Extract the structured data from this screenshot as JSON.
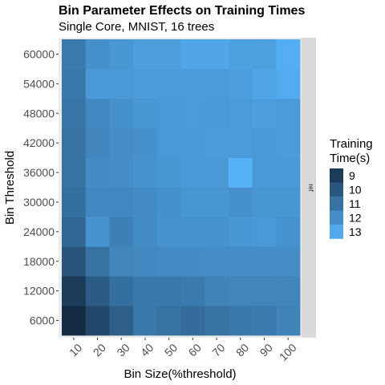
{
  "chart_data": {
    "type": "heatmap",
    "title": "Bin Parameter Effects on Training Times",
    "subtitle": "Single Core, MNIST, 16 trees",
    "xlabel": "Bin Size(%threshold)",
    "ylabel": "Bin Threshold",
    "x_categories": [
      "10",
      "20",
      "30",
      "40",
      "50",
      "60",
      "70",
      "80",
      "90",
      "100"
    ],
    "y_categories": [
      "6000",
      "12000",
      "18000",
      "24000",
      "30000",
      "36000",
      "42000",
      "48000",
      "54000",
      "60000"
    ],
    "facet_label": "ref",
    "legend": {
      "title_lines": [
        "Training",
        "Time(s)"
      ],
      "breaks": [
        9,
        10,
        11,
        12,
        13
      ],
      "range": [
        8.4,
        13.3
      ],
      "placement": "right"
    },
    "color_low": "#132B43",
    "color_high": "#56B1F7",
    "panel_background": "#ebebeb",
    "strip_background": "#d9d9d9",
    "values": [
      [
        8.4,
        9.5,
        10.3,
        11.2,
        11.0,
        10.8,
        11.0,
        11.2,
        11.3,
        11.6
      ],
      [
        9.0,
        10.2,
        10.9,
        11.2,
        11.2,
        11.3,
        11.6,
        11.7,
        11.7,
        11.7
      ],
      [
        9.9,
        11.0,
        11.7,
        11.8,
        11.9,
        11.9,
        12.0,
        12.0,
        12.0,
        12.0
      ],
      [
        10.6,
        12.2,
        11.5,
        11.9,
        12.2,
        12.2,
        12.2,
        12.3,
        12.4,
        12.2
      ],
      [
        10.9,
        11.8,
        11.8,
        11.9,
        12.1,
        12.3,
        12.3,
        12.1,
        12.3,
        12.3
      ],
      [
        11.0,
        11.9,
        12.0,
        12.2,
        12.3,
        12.4,
        12.4,
        13.3,
        12.4,
        12.4
      ],
      [
        11.0,
        11.7,
        12.0,
        12.1,
        12.4,
        12.4,
        12.5,
        12.5,
        12.4,
        12.5
      ],
      [
        11.1,
        11.8,
        12.1,
        12.3,
        12.4,
        12.5,
        12.4,
        12.5,
        12.6,
        12.5
      ],
      [
        11.2,
        12.4,
        12.4,
        12.5,
        12.5,
        12.5,
        12.5,
        12.6,
        12.9,
        13.1
      ],
      [
        11.3,
        12.1,
        12.3,
        12.6,
        12.6,
        12.9,
        12.9,
        12.7,
        12.7,
        13.2
      ]
    ]
  }
}
